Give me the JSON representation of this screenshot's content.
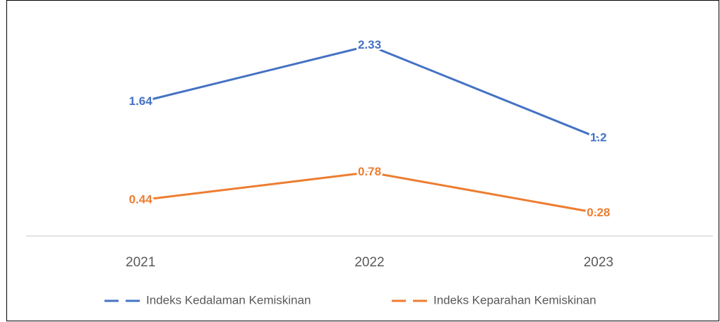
{
  "chart_data": {
    "type": "line",
    "categories": [
      "2021",
      "2022",
      "2023"
    ],
    "series": [
      {
        "name": "Indeks Kedalaman Kemiskinan",
        "color": "#4472c4",
        "values": [
          1.64,
          2.33,
          1.2
        ]
      },
      {
        "name": "Indeks Keparahan Kemiskinan",
        "color": "#ed7d31",
        "values": [
          0.44,
          0.78,
          0.28
        ]
      }
    ],
    "ylim": [
      0,
      2.5
    ],
    "legend": "bottom"
  }
}
